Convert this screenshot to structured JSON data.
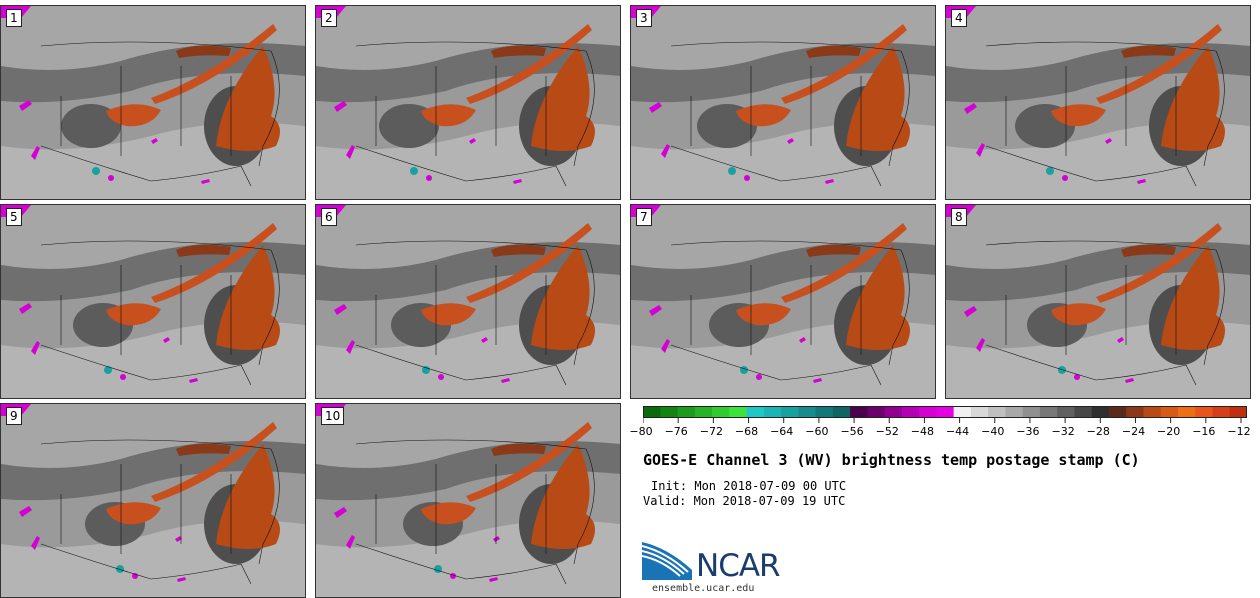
{
  "panels": [
    {
      "label": "1"
    },
    {
      "label": "2"
    },
    {
      "label": "3"
    },
    {
      "label": "4"
    },
    {
      "label": "5"
    },
    {
      "label": "6"
    },
    {
      "label": "7"
    },
    {
      "label": "8"
    },
    {
      "label": "9"
    },
    {
      "label": "10"
    }
  ],
  "colorbar": {
    "colors": [
      "#0a6b0a",
      "#138313",
      "#1d9b1d",
      "#27b327",
      "#31cb31",
      "#3be33b",
      "#1fc8c8",
      "#1cb4b4",
      "#19a0a0",
      "#168c8c",
      "#137878",
      "#106464",
      "#4a004a",
      "#6e006e",
      "#920092",
      "#b600b6",
      "#d400d4",
      "#e600e6",
      "#f0f0f0",
      "#d8d8d8",
      "#c0c0c0",
      "#a8a8a8",
      "#909090",
      "#787878",
      "#606060",
      "#484848",
      "#303030",
      "#5a2a1a",
      "#8a3a18",
      "#b84a16",
      "#d85a14",
      "#ee6e14",
      "#e8541a",
      "#d4401a",
      "#c0300f"
    ],
    "ticks": [
      "−80",
      "−76",
      "−72",
      "−68",
      "−64",
      "−60",
      "−56",
      "−52",
      "−48",
      "−44",
      "−40",
      "−36",
      "−32",
      "−28",
      "−24",
      "−20",
      "−16",
      "−12"
    ]
  },
  "title": "GOES-E Channel 3 (WV) brightness temp postage stamp (C)",
  "init": "Init: Mon 2018-07-09 00 UTC",
  "valid": "Valid: Mon 2018-07-09 19 UTC",
  "logo": {
    "text": "NCAR",
    "site": "ensemble.ucar.edu"
  },
  "accent": {
    "warm": "#c8501e",
    "warm_dark": "#8a3a18",
    "moist": "#d400d4",
    "cyan": "#19a0a0"
  }
}
